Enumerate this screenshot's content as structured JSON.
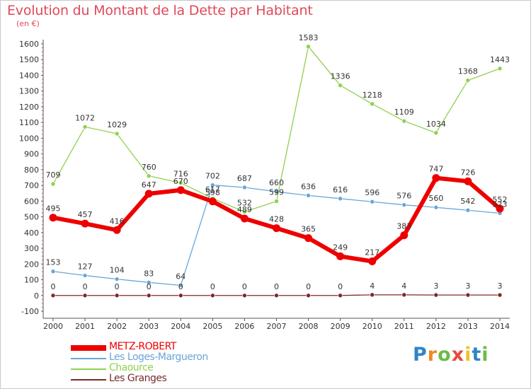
{
  "chart_data": {
    "type": "line",
    "title": "Evolution du Montant de la Dette par Habitant",
    "unit_label": "(en €)",
    "categories": [
      "2000",
      "2001",
      "2002",
      "2003",
      "2004",
      "2005",
      "2006",
      "2007",
      "2008",
      "2009",
      "2010",
      "2011",
      "2012",
      "2013",
      "2014"
    ],
    "ylim": [
      -100,
      1600
    ],
    "yticks": [
      -100,
      0,
      100,
      200,
      300,
      400,
      500,
      600,
      700,
      800,
      900,
      1000,
      1100,
      1200,
      1300,
      1400,
      1500,
      1600
    ],
    "grid": false,
    "legend_position": "bottom-left",
    "series": [
      {
        "name": "METZ-ROBERT",
        "color": "#ee0000",
        "values": [
          495,
          457,
          416,
          647,
          670,
          598,
          489,
          428,
          365,
          249,
          217,
          383,
          747,
          726,
          552
        ]
      },
      {
        "name": "Les Loges-Margueron",
        "color": "#6aa6d6",
        "values": [
          153,
          127,
          104,
          83,
          64,
          702,
          687,
          660,
          636,
          616,
          596,
          576,
          560,
          542,
          523
        ]
      },
      {
        "name": "Chaource",
        "color": "#8fd14f",
        "values": [
          709,
          1072,
          1029,
          760,
          716,
          617,
          532,
          599,
          1583,
          1336,
          1218,
          1109,
          1034,
          1368,
          1443
        ]
      },
      {
        "name": "Les Granges",
        "color": "#7a2a2a",
        "values": [
          0,
          0,
          0,
          0,
          0,
          0,
          0,
          0,
          0,
          0,
          4,
          4,
          3,
          3,
          3
        ]
      }
    ]
  },
  "logo": {
    "letters": [
      "P",
      "r",
      "o",
      "x",
      "i",
      "t",
      "i"
    ],
    "colors": [
      "#2e86c8",
      "#f08a24",
      "#6bbd45",
      "#e84b3c",
      "#f2c12e",
      "#2e86c8",
      "#6bbd45"
    ]
  }
}
